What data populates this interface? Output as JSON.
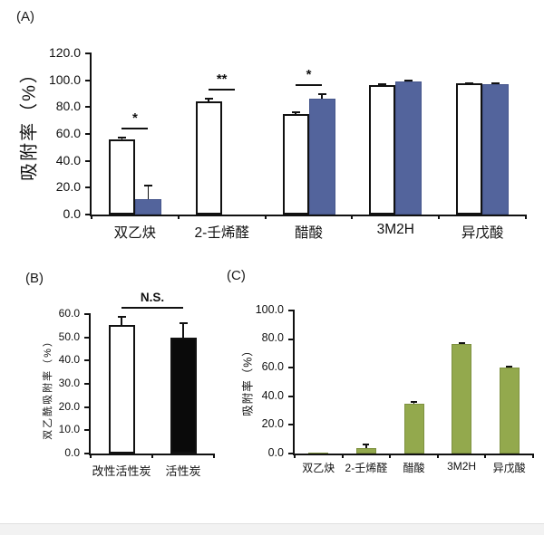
{
  "figure": {
    "panel_labels": [
      "(A)",
      "(B)",
      "(C)"
    ],
    "colors": {
      "axis": "#111111",
      "white_bar": "#ffffff",
      "blue_bar": "#53649c",
      "black_bar": "#0a0a0a",
      "green_bar": "#93a94d",
      "footer_band": "#f2f2f2"
    }
  },
  "chart_data": [
    {
      "id": "panel-A",
      "type": "bar",
      "title": "",
      "xlabel": "",
      "ylabel": "吸附率（%）",
      "categories": [
        "双乙炔",
        "2-壬烯醛",
        "醋酸",
        "3M2H",
        "异戊酸"
      ],
      "series": [
        {
          "color": "#ffffff",
          "border": "#111111",
          "values": [
            56,
            84,
            75,
            96.5,
            97.5
          ],
          "errors": [
            1,
            2,
            1,
            0.5,
            0.5
          ]
        },
        {
          "color": "#53649c",
          "border": "#46568c",
          "values": [
            11.5,
            0,
            86,
            99,
            97
          ],
          "errors": [
            10,
            0,
            4,
            0.7,
            1
          ]
        }
      ],
      "ylim": [
        0,
        120
      ],
      "ytick_labels": [
        "0.0",
        "20.0",
        "40.0",
        "60.0",
        "80.0",
        "100.0",
        "120.0"
      ],
      "grid": false,
      "legend": "none",
      "annotations": [
        {
          "text": "*",
          "from": {
            "group": 0,
            "series": 0
          },
          "to": {
            "group": 0,
            "series": 1
          }
        },
        {
          "text": "**",
          "from": {
            "group": 1,
            "series": 0
          },
          "to": {
            "group": 1,
            "series": 1
          }
        },
        {
          "text": "*",
          "from": {
            "group": 2,
            "series": 0
          },
          "to": {
            "group": 2,
            "series": 1
          }
        }
      ]
    },
    {
      "id": "panel-B",
      "type": "bar",
      "title": "",
      "xlabel": "",
      "ylabel": "双乙酰吸附率（%）",
      "categories": [
        "改性活性炭",
        "活性炭"
      ],
      "series": [
        {
          "color": [
            "#ffffff",
            "#0a0a0a"
          ],
          "border": [
            "#111111",
            "#111111"
          ],
          "values": [
            55.5,
            50
          ],
          "errors": [
            3.5,
            6
          ]
        }
      ],
      "ylim": [
        0,
        60
      ],
      "ytick_labels": [
        "0.0",
        "10.0",
        "20.0",
        "30.0",
        "40.0",
        "50.0",
        "60.0"
      ],
      "grid": false,
      "legend": "none",
      "annotations": [
        {
          "text": "N.S.",
          "from": {
            "group": 0,
            "series": 0
          },
          "to": {
            "group": 1,
            "series": 0
          }
        }
      ]
    },
    {
      "id": "panel-C",
      "type": "bar",
      "title": "",
      "xlabel": "",
      "ylabel": "吸附率（%）",
      "categories": [
        "双乙炔",
        "2-壬烯醛",
        "醋酸",
        "3M2H",
        "异戊酸"
      ],
      "series": [
        {
          "color": "#93a94d",
          "border": "#7e9140",
          "values": [
            0.7,
            4,
            35,
            76.5,
            60
          ],
          "errors": [
            0,
            2.2,
            1,
            0.7,
            0.5
          ]
        }
      ],
      "ylim": [
        0,
        100
      ],
      "ytick_labels": [
        "0.0",
        "20.0",
        "40.0",
        "60.0",
        "80.0",
        "100.0"
      ],
      "grid": false,
      "legend": "none",
      "annotations": []
    }
  ]
}
